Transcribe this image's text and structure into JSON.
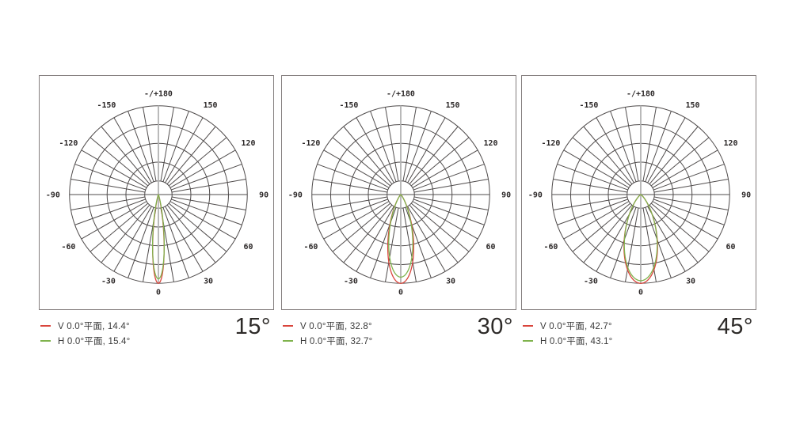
{
  "page": {
    "background": "#ffffff"
  },
  "colors": {
    "grid": "#4f4b4b",
    "axis_highlight": "#b2b2b2",
    "panel_border": "#837d7d",
    "tick_text": "#2c2828",
    "legend_text": "#3a3a3a",
    "beam_label_text": "#2d2a28",
    "v_curve": "#d9453c",
    "h_curve": "#7fb34d"
  },
  "chart_data": [
    {
      "type": "polar",
      "beam_label": "15°",
      "grid": {
        "spoke_step_deg": 10,
        "ring_count": 5,
        "inner_hole_ratio": 0.154,
        "zero_direction": "down",
        "positive": "clockwise-right"
      },
      "angle_tick_labels": [
        {
          "deg": 0,
          "label": "0"
        },
        {
          "deg": 30,
          "label": "30"
        },
        {
          "deg": 60,
          "label": "60"
        },
        {
          "deg": 90,
          "label": "90"
        },
        {
          "deg": 120,
          "label": "120"
        },
        {
          "deg": 150,
          "label": "150"
        },
        {
          "deg": 180,
          "label": "-/+180"
        },
        {
          "deg": -150,
          "label": "-150"
        },
        {
          "deg": -120,
          "label": "-120"
        },
        {
          "deg": -90,
          "label": "-90"
        },
        {
          "deg": -60,
          "label": "-60"
        },
        {
          "deg": -30,
          "label": "-30"
        }
      ],
      "series": [
        {
          "id": "V",
          "label": "V 0.0°平面, 14.4°",
          "beam_angle_deg": 14.4,
          "color": "#d9453c",
          "peak_ratio": 1.0
        },
        {
          "id": "H",
          "label": "H 0.0°平面, 15.4°",
          "beam_angle_deg": 15.4,
          "color": "#7fb34d",
          "peak_ratio": 0.95
        }
      ]
    },
    {
      "type": "polar",
      "beam_label": "30°",
      "grid": {
        "spoke_step_deg": 10,
        "ring_count": 5,
        "inner_hole_ratio": 0.154,
        "zero_direction": "down",
        "positive": "clockwise-right"
      },
      "angle_tick_labels": [
        {
          "deg": 0,
          "label": "0"
        },
        {
          "deg": 30,
          "label": "30"
        },
        {
          "deg": 60,
          "label": "60"
        },
        {
          "deg": 90,
          "label": "90"
        },
        {
          "deg": 120,
          "label": "120"
        },
        {
          "deg": 150,
          "label": "150"
        },
        {
          "deg": 180,
          "label": "-/+180"
        },
        {
          "deg": -150,
          "label": "-150"
        },
        {
          "deg": -120,
          "label": "-120"
        },
        {
          "deg": -90,
          "label": "-90"
        },
        {
          "deg": -60,
          "label": "-60"
        },
        {
          "deg": -30,
          "label": "-30"
        }
      ],
      "series": [
        {
          "id": "V",
          "label": "V 0.0°平面, 32.8°",
          "beam_angle_deg": 32.8,
          "color": "#d9453c",
          "peak_ratio": 1.0
        },
        {
          "id": "H",
          "label": "H 0.0°平面, 32.7°",
          "beam_angle_deg": 32.7,
          "color": "#7fb34d",
          "peak_ratio": 0.93
        }
      ]
    },
    {
      "type": "polar",
      "beam_label": "45°",
      "grid": {
        "spoke_step_deg": 10,
        "ring_count": 5,
        "inner_hole_ratio": 0.154,
        "zero_direction": "down",
        "positive": "clockwise-right"
      },
      "angle_tick_labels": [
        {
          "deg": 0,
          "label": "0"
        },
        {
          "deg": 30,
          "label": "30"
        },
        {
          "deg": 60,
          "label": "60"
        },
        {
          "deg": 90,
          "label": "90"
        },
        {
          "deg": 120,
          "label": "120"
        },
        {
          "deg": 150,
          "label": "150"
        },
        {
          "deg": 180,
          "label": "-/+180"
        },
        {
          "deg": -150,
          "label": "-150"
        },
        {
          "deg": -120,
          "label": "-120"
        },
        {
          "deg": -90,
          "label": "-90"
        },
        {
          "deg": -60,
          "label": "-60"
        },
        {
          "deg": -30,
          "label": "-30"
        }
      ],
      "series": [
        {
          "id": "V",
          "label": "V 0.0°平面, 42.7°",
          "beam_angle_deg": 42.7,
          "color": "#d9453c",
          "peak_ratio": 1.0
        },
        {
          "id": "H",
          "label": "H 0.0°平面, 43.1°",
          "beam_angle_deg": 43.1,
          "color": "#7fb34d",
          "peak_ratio": 0.97
        }
      ]
    }
  ]
}
